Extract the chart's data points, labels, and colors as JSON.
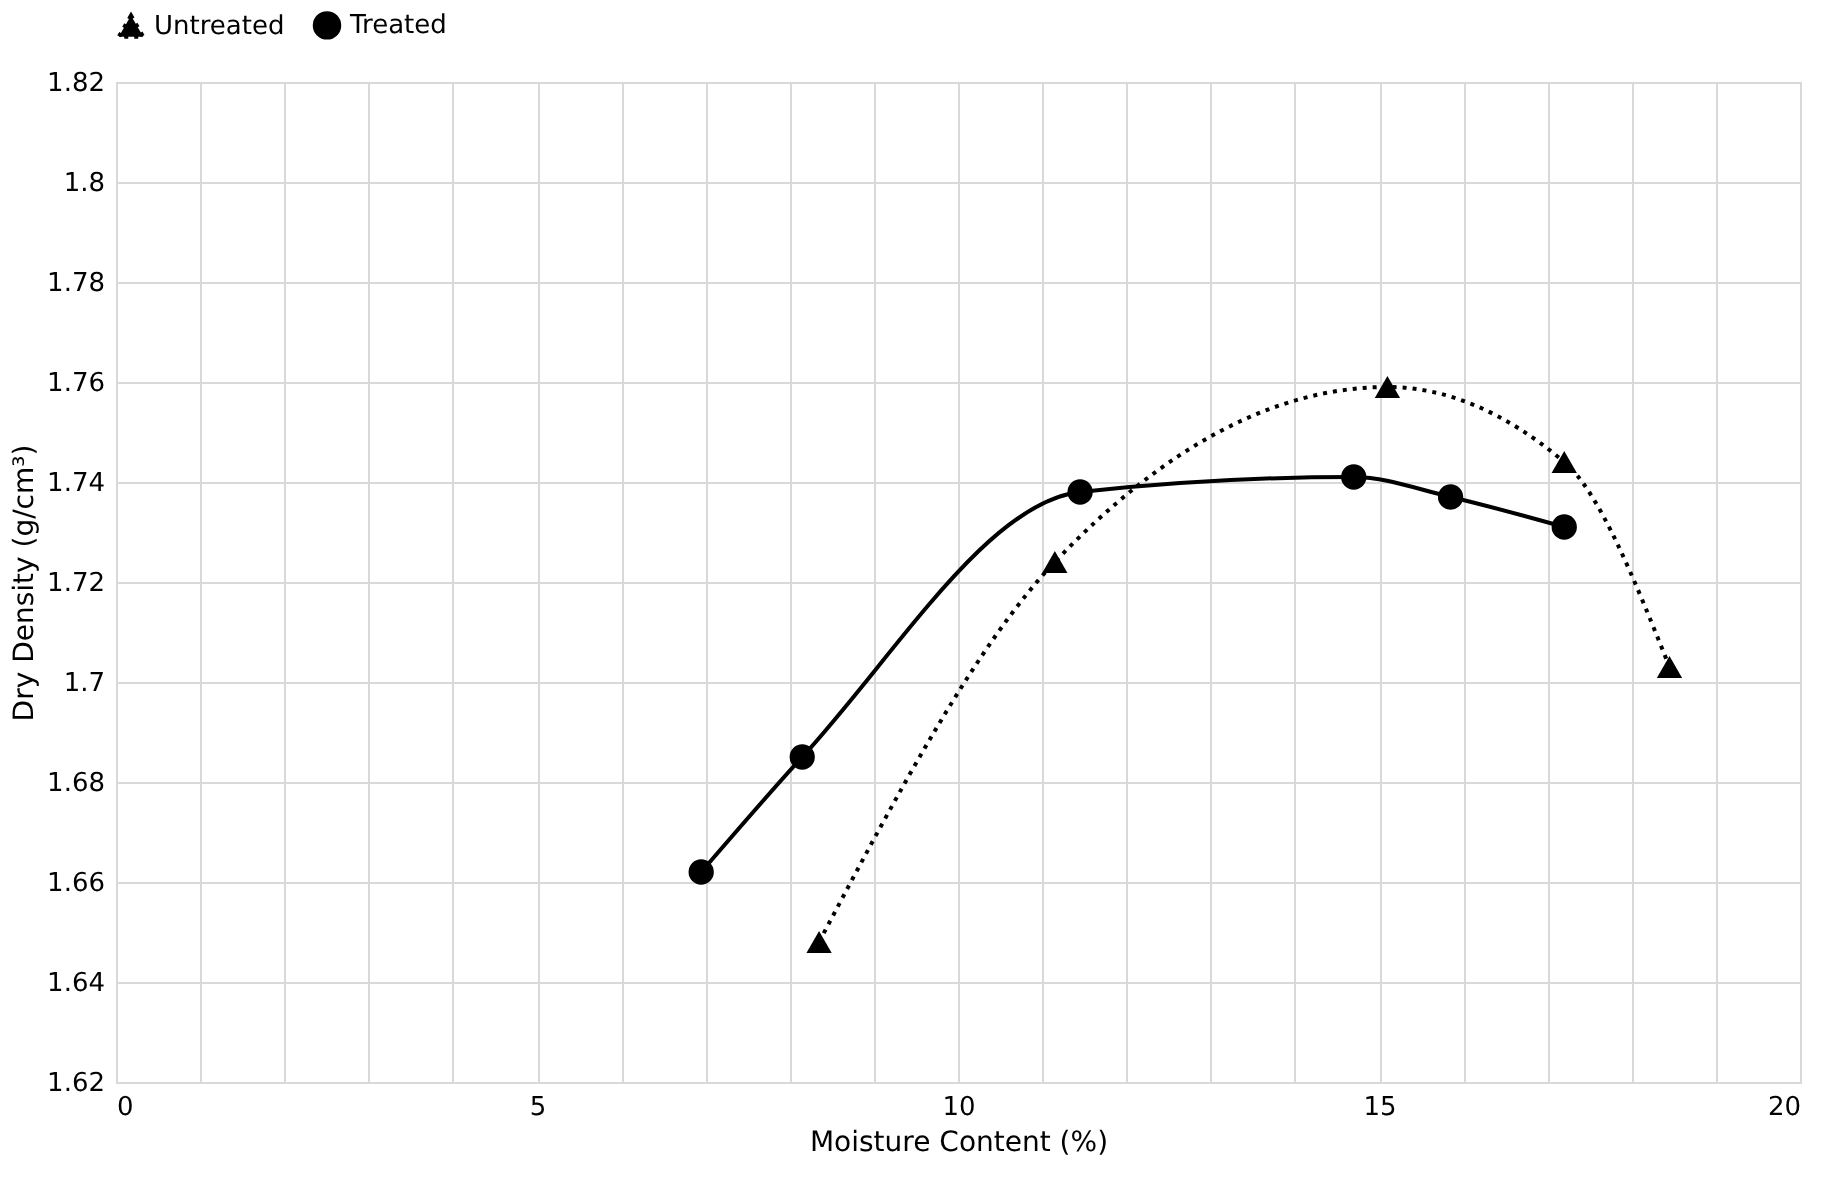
{
  "chart_data": {
    "type": "line",
    "xlabel": "Moisture Content (%)",
    "ylabel": "Dry Density (g/cm³)",
    "xlim": [
      0,
      20
    ],
    "xticks": [
      0,
      {
        "value": 1,
        "label": null
      },
      {
        "value": 2,
        "label": null
      },
      {
        "value": 3,
        "label": null
      },
      {
        "value": 4,
        "label": null
      },
      5,
      {
        "value": 6,
        "label": null
      },
      {
        "value": 7,
        "label": null
      },
      {
        "value": 8,
        "label": null
      },
      {
        "value": 9,
        "label": null
      },
      10,
      {
        "value": 11,
        "label": null
      },
      {
        "value": 12,
        "label": null
      },
      {
        "value": 13,
        "label": null
      },
      {
        "value": 14,
        "label": null
      },
      15,
      {
        "value": 16,
        "label": null
      },
      {
        "value": 17,
        "label": null
      },
      {
        "value": 18,
        "label": null
      },
      {
        "value": 19,
        "label": null
      },
      20
    ],
    "ylim": [
      1.62,
      1.82
    ],
    "yticks": [
      1.62,
      1.64,
      1.66,
      1.68,
      1.7,
      1.72,
      1.74,
      1.76,
      1.78,
      1.8,
      1.82
    ],
    "grid": true,
    "legend": "top",
    "series": [
      {
        "name": "Untreated",
        "color": "#000000",
        "marker": "triangle",
        "line_style": "dotted",
        "x": [
          8.35,
          11.15,
          15.1,
          17.2,
          18.45
        ],
        "values": [
          1.648,
          1.724,
          1.759,
          1.744,
          1.703
        ]
      },
      {
        "name": "Treated",
        "color": "#000000",
        "marker": "circle",
        "line_style": "solid",
        "x": [
          6.95,
          8.15,
          11.45,
          14.7,
          15.85,
          17.2
        ],
        "values": [
          1.662,
          1.685,
          1.738,
          1.741,
          1.737,
          1.731
        ]
      }
    ]
  }
}
